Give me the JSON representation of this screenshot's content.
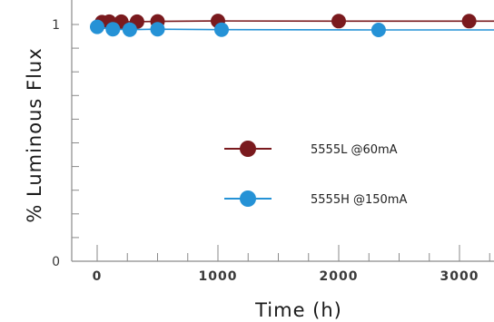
{
  "chart_data": {
    "type": "line",
    "title": "",
    "xlabel": "Time (h)",
    "ylabel": "% Luminous Flux",
    "xlim": [
      -150,
      3250
    ],
    "ylim": [
      0,
      1.05
    ],
    "x_ticks": [
      0,
      1000,
      2000,
      3000
    ],
    "x_tick_labels": [
      "0",
      "1000",
      "2000",
      "3000"
    ],
    "y_ticks": [
      0,
      1
    ],
    "y_tick_labels": [
      "0",
      "1"
    ],
    "grid": false,
    "legend_position": "center",
    "series": [
      {
        "name": "5555L @60mA",
        "color": "#7a1a1e",
        "x": [
          40,
          100,
          200,
          330,
          500,
          1000,
          2000,
          3080
        ],
        "y": [
          1.01,
          1.012,
          1.012,
          1.012,
          1.013,
          1.015,
          1.014,
          1.014
        ]
      },
      {
        "name": "5555H @150mA",
        "color": "#2592d6",
        "x": [
          0,
          130,
          270,
          500,
          1030,
          2330
        ],
        "y": [
          0.99,
          0.98,
          0.978,
          0.98,
          0.978,
          0.977
        ]
      }
    ]
  }
}
